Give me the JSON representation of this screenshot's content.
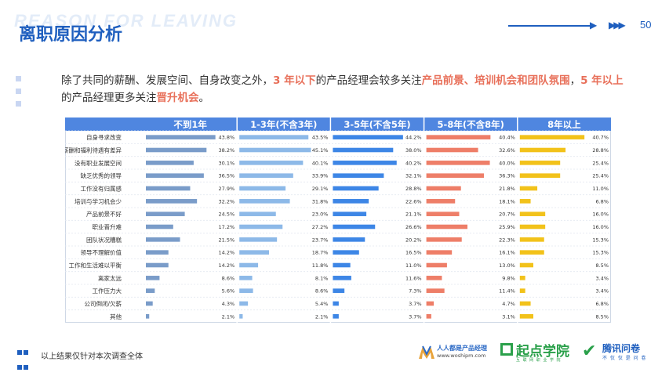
{
  "header": {
    "watermark": "REASON FOR LEAVING",
    "title": "离职原因分析",
    "page_number": "50",
    "arrow1": "▶",
    "arrow2": "▶▶▶"
  },
  "summary": {
    "part1": "除了共同的薪酬、发展空间、自身改变之外，",
    "hl1": "3 年以下",
    "part2": "的产品经理会较多关注",
    "hl2": "产品前景、培训机会和团队氛围",
    "part3": "，",
    "hl3": "5 年以上",
    "part4": "的产品经理更多关注",
    "hl4": "晋升机会",
    "part5": "。"
  },
  "footer": {
    "note": "以上结果仅针对本次调查全体",
    "logo1_name": "人人都是产品经理",
    "logo1_url": "www.woshipm.com",
    "logo2_name": "起点学院",
    "logo2_sub": "互 联 网 职 业 学 院",
    "logo3_name": "腾讯问卷",
    "logo3_sub": "不 仅 仅 是 问 卷"
  },
  "colors": {
    "brand": "#1f5fbf",
    "highlight": "#e8705a",
    "header_bg": "#4f86e0",
    "series": [
      "#7a9cc9",
      "#8db9e8",
      "#3d86e6",
      "#ee7e68",
      "#f2c21a"
    ]
  },
  "chart_data": {
    "type": "bar",
    "categories": [
      "自身寻求改变",
      "薪酬和福利待遇有差异",
      "没有职业发展空间",
      "缺乏优秀的领导",
      "工作没有归属感",
      "培训与学习机会少",
      "产品前景不好",
      "职业晋升难",
      "团队状况糟糕",
      "领导不理解价值",
      "工作和生活难以平衡",
      "离家太远",
      "工作压力大",
      "公司倒闭/欠薪",
      "其他"
    ],
    "series": [
      {
        "name": "不到1年",
        "values": [
          43.8,
          38.2,
          30.1,
          36.5,
          27.9,
          32.2,
          24.5,
          17.2,
          21.5,
          14.2,
          14.2,
          8.6,
          5.6,
          4.3,
          2.1
        ]
      },
      {
        "name": "1-3年(不含3年)",
        "values": [
          43.5,
          45.1,
          40.1,
          33.9,
          29.1,
          31.8,
          23.0,
          27.2,
          23.7,
          18.7,
          11.8,
          8.1,
          8.6,
          5.4,
          2.1
        ]
      },
      {
        "name": "3-5年(不含5年)",
        "values": [
          44.2,
          38.0,
          40.2,
          32.1,
          28.8,
          22.6,
          21.1,
          26.6,
          20.2,
          16.5,
          11.0,
          11.6,
          7.3,
          3.7,
          3.7
        ]
      },
      {
        "name": "5-8年(不含8年)",
        "values": [
          40.4,
          32.6,
          40.0,
          36.3,
          21.8,
          18.1,
          20.7,
          25.9,
          22.3,
          16.1,
          13.0,
          9.8,
          11.4,
          4.7,
          3.1
        ]
      },
      {
        "name": "8年以上",
        "values": [
          40.7,
          28.8,
          25.4,
          25.4,
          11.0,
          6.8,
          16.0,
          16.0,
          15.3,
          15.3,
          8.5,
          3.4,
          3.4,
          6.8,
          8.5
        ]
      }
    ],
    "value_labels": [
      [
        "43.8%",
        "38.2%",
        "30.1%",
        "36.5%",
        "27.9%",
        "32.2%",
        "24.5%",
        "17.2%",
        "21.5%",
        "14.2%",
        "14.2%",
        "8.6%",
        "5.6%",
        "4.3%",
        "2.1%"
      ],
      [
        "43.5%",
        "45.1%",
        "40.1%",
        "33.9%",
        "29.1%",
        "31.8%",
        "23.0%",
        "27.2%",
        "23.7%",
        "18.7%",
        "11.8%",
        "8.1%",
        "8.6%",
        "5.4%",
        "2.1%"
      ],
      [
        "44.2%",
        "38.0%",
        "40.2%",
        "32.1%",
        "28.8%",
        "22.6%",
        "21.1%",
        "26.6%",
        "20.2%",
        "16.5%",
        "11.0%",
        "11.6%",
        "7.3%",
        "3.7%",
        "3.7%"
      ],
      [
        "40.4%",
        "32.6%",
        "40.0%",
        "36.3%",
        "21.8%",
        "18.1%",
        "20.7%",
        "25.9%",
        "22.3%",
        "16.1%",
        "13.0%",
        "9.8%",
        "11.4%",
        "4.7%",
        "3.1%"
      ],
      [
        "40.7%",
        "28.8%",
        "25.4%",
        "25.4%",
        "11.0%",
        "6.8%",
        "16.0%",
        "16.0%",
        "15.3%",
        "15.3%",
        "8.5%",
        "3.4%",
        "3.4%",
        "6.8%",
        "8.5%"
      ]
    ],
    "xlim": [
      0,
      50
    ],
    "grid": false,
    "legend": "top"
  }
}
